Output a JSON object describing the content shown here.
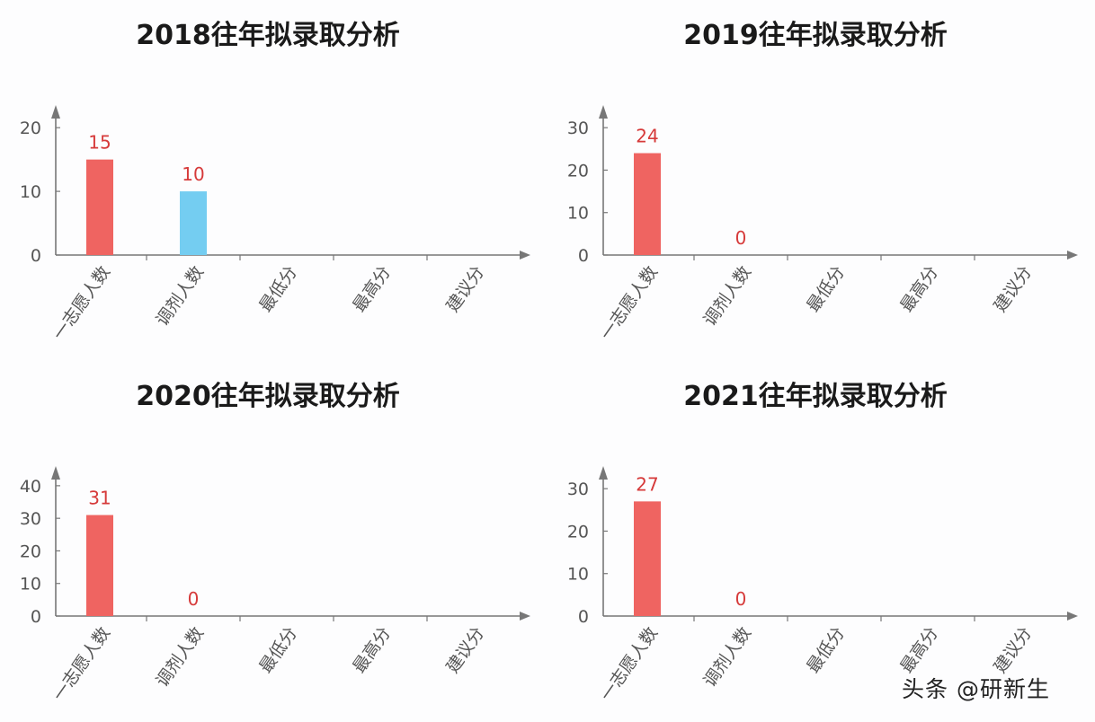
{
  "chart_data": [
    {
      "type": "bar",
      "title": "2018往年拟录取分析",
      "categories": [
        "一志愿人数",
        "调剂人数",
        "最低分",
        "最高分",
        "建议分"
      ],
      "values": [
        15,
        10,
        null,
        null,
        null
      ],
      "data_labels": [
        "15",
        "10",
        "",
        "",
        ""
      ],
      "bar_colors": [
        "#ef6461",
        "#74cdf1",
        "#ef6461",
        "#ef6461",
        "#ef6461"
      ],
      "yticks": [
        0,
        10,
        20
      ],
      "ylim": [
        0,
        22
      ],
      "grid": false,
      "legend": "none"
    },
    {
      "type": "bar",
      "title": "2019往年拟录取分析",
      "categories": [
        "一志愿人数",
        "调剂人数",
        "最低分",
        "最高分",
        "建议分"
      ],
      "values": [
        24,
        0,
        null,
        null,
        null
      ],
      "data_labels": [
        "24",
        "0",
        "",
        "",
        ""
      ],
      "bar_colors": [
        "#ef6461",
        "#ef6461",
        "#ef6461",
        "#ef6461",
        "#ef6461"
      ],
      "yticks": [
        0,
        10,
        20,
        30
      ],
      "ylim": [
        0,
        33
      ],
      "grid": false,
      "legend": "none"
    },
    {
      "type": "bar",
      "title": "2020往年拟录取分析",
      "categories": [
        "一志愿人数",
        "调剂人数",
        "最低分",
        "最高分",
        "建议分"
      ],
      "values": [
        31,
        0,
        null,
        null,
        null
      ],
      "data_labels": [
        "31",
        "0",
        "",
        "",
        ""
      ],
      "bar_colors": [
        "#ef6461",
        "#ef6461",
        "#ef6461",
        "#ef6461",
        "#ef6461"
      ],
      "yticks": [
        0,
        10,
        20,
        30,
        40
      ],
      "ylim": [
        0,
        43
      ],
      "grid": false,
      "legend": "none"
    },
    {
      "type": "bar",
      "title": "2021往年拟录取分析",
      "categories": [
        "一志愿人数",
        "调剂人数",
        "最低分",
        "最高分",
        "建议分"
      ],
      "values": [
        27,
        0,
        null,
        null,
        null
      ],
      "data_labels": [
        "27",
        "0",
        "",
        "",
        ""
      ],
      "bar_colors": [
        "#ef6461",
        "#ef6461",
        "#ef6461",
        "#ef6461",
        "#ef6461"
      ],
      "yticks": [
        0,
        10,
        20,
        30
      ],
      "ylim": [
        0,
        33
      ],
      "grid": false,
      "legend": "none"
    }
  ],
  "watermark": "头条 @研新生",
  "colors": {
    "axis": "#777777",
    "label": "#d63a3a"
  }
}
